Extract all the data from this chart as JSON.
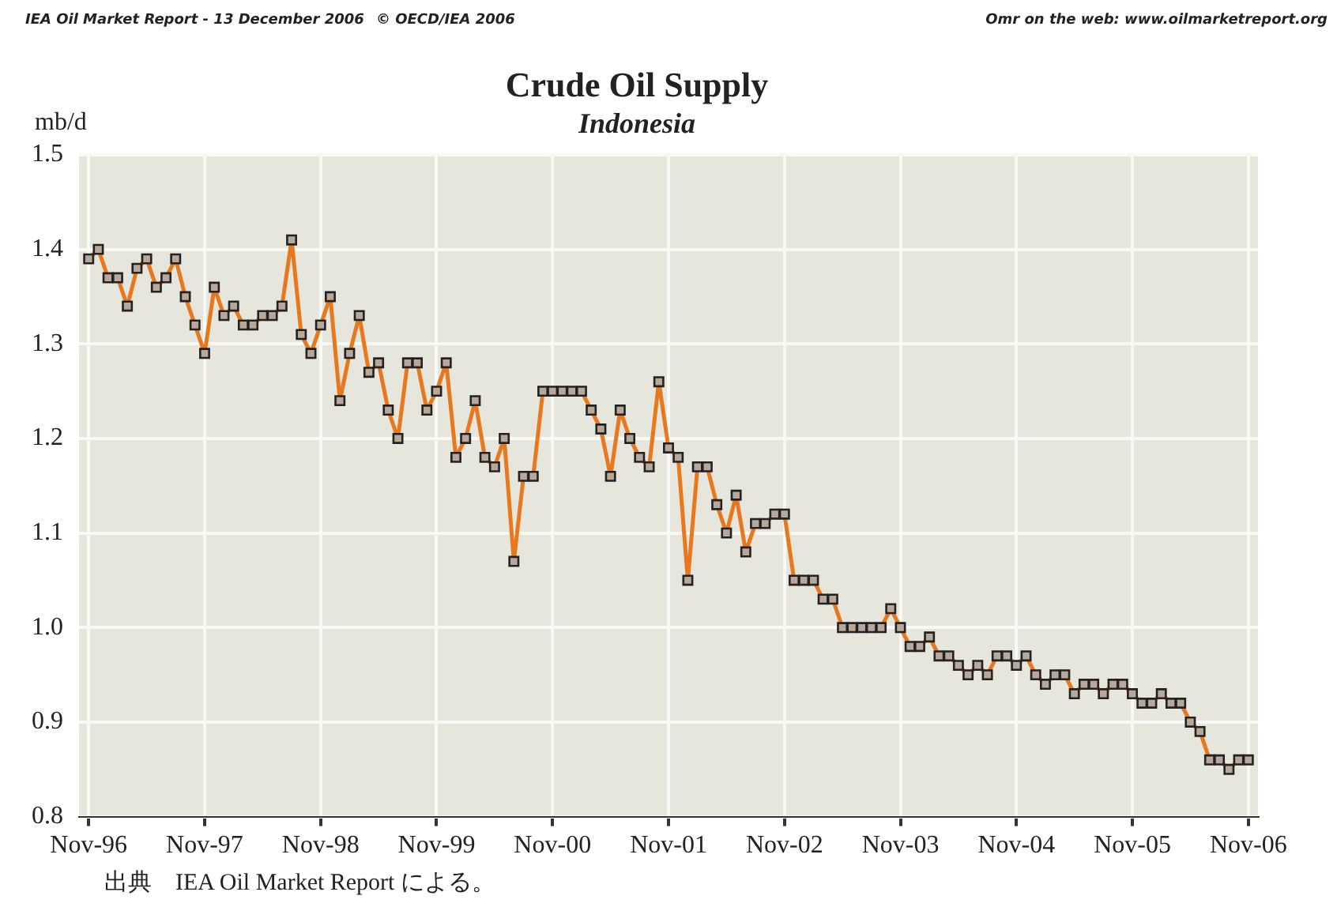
{
  "chart_data": {
    "type": "line",
    "title": "Crude Oil Supply",
    "subtitle": "Indonesia",
    "ylabel": "mb/d",
    "annotations": [
      "IEA Oil Market Report - 13 December 2006",
      "© OECD/IEA 2006",
      "Omr on the web: www.oilmarketreport.org",
      "出典　IEA Oil Market Report による。"
    ],
    "x": [
      "1996-11",
      "1996-12",
      "1997-01",
      "1997-02",
      "1997-03",
      "1997-04",
      "1997-05",
      "1997-06",
      "1997-07",
      "1997-08",
      "1997-09",
      "1997-10",
      "1997-11",
      "1997-12",
      "1998-01",
      "1998-02",
      "1998-03",
      "1998-04",
      "1998-05",
      "1998-06",
      "1998-07",
      "1998-08",
      "1998-09",
      "1998-10",
      "1998-11",
      "1998-12",
      "1999-01",
      "1999-02",
      "1999-03",
      "1999-04",
      "1999-05",
      "1999-06",
      "1999-07",
      "1999-08",
      "1999-09",
      "1999-10",
      "1999-11",
      "1999-12",
      "2000-01",
      "2000-02",
      "2000-03",
      "2000-04",
      "2000-05",
      "2000-06",
      "2000-07",
      "2000-08",
      "2000-09",
      "2000-10",
      "2000-11",
      "2000-12",
      "2001-01",
      "2001-02",
      "2001-03",
      "2001-04",
      "2001-05",
      "2001-06",
      "2001-07",
      "2001-08",
      "2001-09",
      "2001-10",
      "2001-11",
      "2001-12",
      "2002-01",
      "2002-02",
      "2002-03",
      "2002-04",
      "2002-05",
      "2002-06",
      "2002-07",
      "2002-08",
      "2002-09",
      "2002-10",
      "2002-11",
      "2002-12",
      "2003-01",
      "2003-02",
      "2003-03",
      "2003-04",
      "2003-05",
      "2003-06",
      "2003-07",
      "2003-08",
      "2003-09",
      "2003-10",
      "2003-11",
      "2003-12",
      "2004-01",
      "2004-02",
      "2004-03",
      "2004-04",
      "2004-05",
      "2004-06",
      "2004-07",
      "2004-08",
      "2004-09",
      "2004-10",
      "2004-11",
      "2004-12",
      "2005-01",
      "2005-02",
      "2005-03",
      "2005-04",
      "2005-05",
      "2005-06",
      "2005-07",
      "2005-08",
      "2005-09",
      "2005-10",
      "2005-11",
      "2005-12",
      "2006-01",
      "2006-02",
      "2006-03",
      "2006-04",
      "2006-05",
      "2006-06",
      "2006-07",
      "2006-08",
      "2006-09",
      "2006-10",
      "2006-11"
    ],
    "series": [
      {
        "color": "#e8781e",
        "values": [
          1.39,
          1.4,
          1.37,
          1.37,
          1.34,
          1.38,
          1.39,
          1.36,
          1.37,
          1.39,
          1.35,
          1.32,
          1.29,
          1.36,
          1.33,
          1.34,
          1.32,
          1.32,
          1.33,
          1.33,
          1.34,
          1.41,
          1.31,
          1.29,
          1.32,
          1.35,
          1.24,
          1.29,
          1.33,
          1.27,
          1.28,
          1.23,
          1.2,
          1.28,
          1.28,
          1.23,
          1.25,
          1.28,
          1.18,
          1.2,
          1.24,
          1.18,
          1.17,
          1.2,
          1.07,
          1.16,
          1.16,
          1.25,
          1.25,
          1.25,
          1.25,
          1.25,
          1.23,
          1.21,
          1.16,
          1.23,
          1.2,
          1.18,
          1.17,
          1.26,
          1.19,
          1.18,
          1.05,
          1.17,
          1.17,
          1.13,
          1.1,
          1.14,
          1.08,
          1.11,
          1.11,
          1.12,
          1.12,
          1.05,
          1.05,
          1.05,
          1.03,
          1.03,
          1.0,
          1.0,
          1.0,
          1.0,
          1.0,
          1.02,
          1.0,
          0.98,
          0.98,
          0.99,
          0.97,
          0.97,
          0.96,
          0.95,
          0.96,
          0.95,
          0.97,
          0.97,
          0.96,
          0.97,
          0.95,
          0.94,
          0.95,
          0.95,
          0.93,
          0.94,
          0.94,
          0.93,
          0.94,
          0.94,
          0.93,
          0.92,
          0.92,
          0.93,
          0.92,
          0.92,
          0.9,
          0.89,
          0.86,
          0.86,
          0.85,
          0.86,
          0.86
        ]
      }
    ],
    "xlim": [
      "1996-10",
      "2006-12"
    ],
    "xticks": [
      {
        "value": "1996-11",
        "label": "Nov-96"
      },
      {
        "value": "1997-11",
        "label": "Nov-97"
      },
      {
        "value": "1998-11",
        "label": "Nov-98"
      },
      {
        "value": "1999-11",
        "label": "Nov-99"
      },
      {
        "value": "2000-11",
        "label": "Nov-00"
      },
      {
        "value": "2001-11",
        "label": "Nov-01"
      },
      {
        "value": "2002-11",
        "label": "Nov-02"
      },
      {
        "value": "2003-11",
        "label": "Nov-03"
      },
      {
        "value": "2004-11",
        "label": "Nov-04"
      },
      {
        "value": "2005-11",
        "label": "Nov-05"
      },
      {
        "value": "2006-11",
        "label": "Nov-06"
      }
    ],
    "ylim": [
      0.8,
      1.5
    ],
    "yticks": [
      {
        "value": 0.8,
        "label": "0.8"
      },
      {
        "value": 0.9,
        "label": "0.9"
      },
      {
        "value": 1.0,
        "label": "1.0"
      },
      {
        "value": 1.1,
        "label": "1.1"
      },
      {
        "value": 1.2,
        "label": "1.2"
      },
      {
        "value": 1.3,
        "label": "1.3"
      },
      {
        "value": 1.4,
        "label": "1.4"
      },
      {
        "value": 1.5,
        "label": "1.5"
      }
    ],
    "grid": true,
    "legend": false,
    "marker": "square",
    "line_style": "solid"
  }
}
